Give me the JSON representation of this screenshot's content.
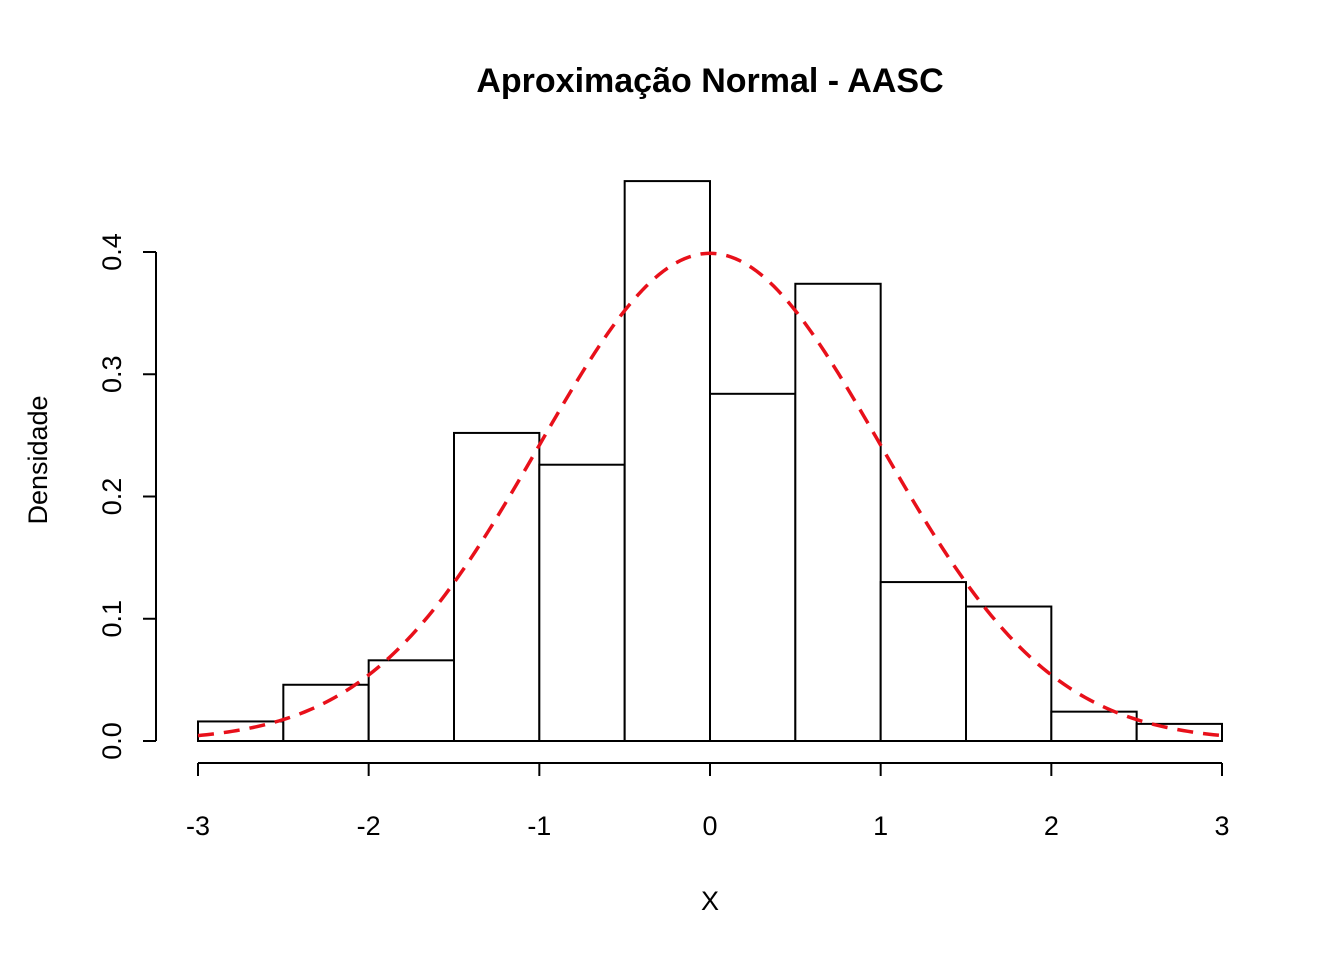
{
  "chart_data": {
    "type": "bar",
    "title": "Aproximação Normal - AASC",
    "xlabel": "X",
    "ylabel": "Densidade",
    "xlim": [
      -3,
      3
    ],
    "ylim": [
      0,
      0.4
    ],
    "grid": false,
    "x_ticks": [
      "-3",
      "-2",
      "-1",
      "0",
      "1",
      "2",
      "3"
    ],
    "y_ticks": [
      "0.0",
      "0.1",
      "0.2",
      "0.3",
      "0.4"
    ],
    "histogram": {
      "bin_edges": [
        -3,
        -2.5,
        -2,
        -1.5,
        -1,
        -0.5,
        0,
        0.5,
        1,
        1.5,
        2,
        2.5,
        3
      ],
      "density": [
        0.016,
        0.046,
        0.066,
        0.252,
        0.226,
        0.458,
        0.284,
        0.374,
        0.13,
        0.11,
        0.024,
        0.014
      ]
    },
    "curve": {
      "type": "line",
      "distribution": "normal",
      "mean": 0,
      "sd": 1,
      "style": "dashed",
      "color": "#e8101a"
    }
  }
}
